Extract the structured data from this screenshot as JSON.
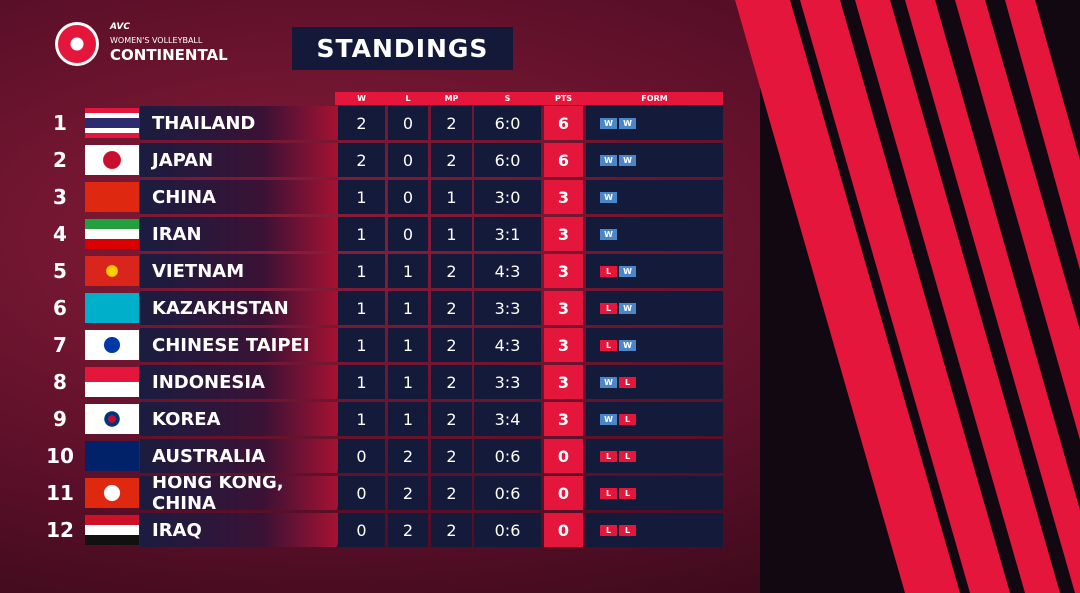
{
  "header": {
    "logo_avc": "AVC",
    "logo_sub": "WOMEN'S VOLLEYBALL",
    "logo_main": "CONTINENTAL",
    "title": "STANDINGS"
  },
  "table": {
    "columns": [
      "W",
      "L",
      "MP",
      "S",
      "PTS",
      "FORM"
    ],
    "rows": [
      {
        "rank": 1,
        "team": "THAILAND",
        "w": 2,
        "l": 0,
        "mp": 2,
        "s": "6:0",
        "pts": 6,
        "form": [
          "W",
          "W"
        ]
      },
      {
        "rank": 2,
        "team": "JAPAN",
        "w": 2,
        "l": 0,
        "mp": 2,
        "s": "6:0",
        "pts": 6,
        "form": [
          "W",
          "W"
        ]
      },
      {
        "rank": 3,
        "team": "CHINA",
        "w": 1,
        "l": 0,
        "mp": 1,
        "s": "3:0",
        "pts": 3,
        "form": [
          "W"
        ]
      },
      {
        "rank": 4,
        "team": "IRAN",
        "w": 1,
        "l": 0,
        "mp": 1,
        "s": "3:1",
        "pts": 3,
        "form": [
          "W"
        ]
      },
      {
        "rank": 5,
        "team": "VIETNAM",
        "w": 1,
        "l": 1,
        "mp": 2,
        "s": "4:3",
        "pts": 3,
        "form": [
          "L",
          "W"
        ]
      },
      {
        "rank": 6,
        "team": "KAZAKHSTAN",
        "w": 1,
        "l": 1,
        "mp": 2,
        "s": "3:3",
        "pts": 3,
        "form": [
          "L",
          "W"
        ]
      },
      {
        "rank": 7,
        "team": "CHINESE TAIPEI",
        "w": 1,
        "l": 1,
        "mp": 2,
        "s": "4:3",
        "pts": 3,
        "form": [
          "L",
          "W"
        ]
      },
      {
        "rank": 8,
        "team": "INDONESIA",
        "w": 1,
        "l": 1,
        "mp": 2,
        "s": "3:3",
        "pts": 3,
        "form": [
          "W",
          "L"
        ]
      },
      {
        "rank": 9,
        "team": "KOREA",
        "w": 1,
        "l": 1,
        "mp": 2,
        "s": "3:4",
        "pts": 3,
        "form": [
          "W",
          "L"
        ]
      },
      {
        "rank": 10,
        "team": "AUSTRALIA",
        "w": 0,
        "l": 2,
        "mp": 2,
        "s": "0:6",
        "pts": 0,
        "form": [
          "L",
          "L"
        ]
      },
      {
        "rank": 11,
        "team": "HONG KONG, CHINA",
        "w": 0,
        "l": 2,
        "mp": 2,
        "s": "0:6",
        "pts": 0,
        "form": [
          "L",
          "L"
        ]
      },
      {
        "rank": 12,
        "team": "IRAQ",
        "w": 0,
        "l": 2,
        "mp": 2,
        "s": "0:6",
        "pts": 0,
        "form": [
          "L",
          "L"
        ]
      }
    ]
  }
}
